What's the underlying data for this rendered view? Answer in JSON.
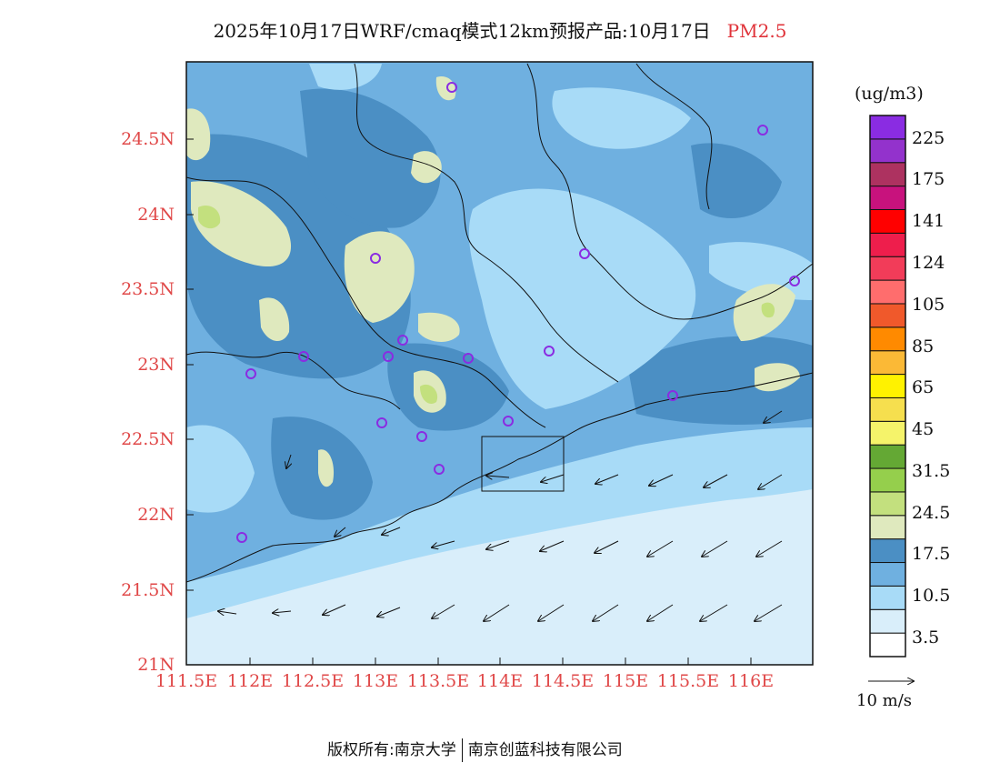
{
  "title": {
    "main": "2025年10月17日WRF/cmaq模式12km预报产品:10月17日",
    "species": "PM2.5"
  },
  "axes": {
    "lat_labels": [
      "24.5N",
      "24N",
      "23.5N",
      "23N",
      "22.5N",
      "22N",
      "21.5N",
      "21N"
    ],
    "lon_labels": [
      "111.5E",
      "112E",
      "112.5E",
      "113E",
      "113.5E",
      "114E",
      "114.5E",
      "115E",
      "115.5E",
      "116E"
    ],
    "lat_range": [
      21.0,
      24.95
    ],
    "lon_range": [
      111.5,
      116.5
    ]
  },
  "legend": {
    "unit": "(ug/m3)",
    "labels": [
      "225",
      "175",
      "141",
      "124",
      "105",
      "85",
      "65",
      "45",
      "31.5",
      "24.5",
      "17.5",
      "10.5",
      "3.5"
    ],
    "colors_bottom_to_top": [
      "#ffffff",
      "#d9eefa",
      "#a8dbf7",
      "#6fb0e0",
      "#4b8fc4",
      "#dfe9be",
      "#c3e07e",
      "#95cf4c",
      "#64a834",
      "#f5f36a",
      "#f6df4e",
      "#fff200",
      "#fbb936",
      "#ff8a00",
      "#f0592b",
      "#ff6d6d",
      "#f23c59",
      "#ee1e4c",
      "#ff0000",
      "#c8127d",
      "#ad3260",
      "#9332cc",
      "#8a2ce2"
    ]
  },
  "wind_reference": {
    "label": "10 m/s"
  },
  "footer": {
    "left": "版权所有:南京大学",
    "right": "南京创蓝科技有限公司"
  },
  "chart_data": {
    "type": "heatmap",
    "title": "2025年10月17日WRF/cmaq模式12km预报产品:10月17日 PM2.5",
    "unit": "ug/m3",
    "x_axis": "longitude",
    "y_axis": "latitude",
    "station_markers": [
      {
        "lon": 113.6,
        "lat": 24.85
      },
      {
        "lon": 116.1,
        "lat": 24.55
      },
      {
        "lon": 113.0,
        "lat": 23.7
      },
      {
        "lon": 114.6,
        "lat": 23.73
      },
      {
        "lon": 116.35,
        "lat": 23.55
      },
      {
        "lon": 113.2,
        "lat": 23.15
      },
      {
        "lon": 112.45,
        "lat": 23.05
      },
      {
        "lon": 113.1,
        "lat": 23.05
      },
      {
        "lon": 113.75,
        "lat": 23.05
      },
      {
        "lon": 114.35,
        "lat": 23.1
      },
      {
        "lon": 112.0,
        "lat": 22.93
      },
      {
        "lon": 115.35,
        "lat": 22.78
      },
      {
        "lon": 113.05,
        "lat": 22.62
      },
      {
        "lon": 113.45,
        "lat": 22.52
      },
      {
        "lon": 114.05,
        "lat": 22.62
      },
      {
        "lon": 113.5,
        "lat": 22.3
      },
      {
        "lon": 111.95,
        "lat": 21.85
      }
    ]
  }
}
